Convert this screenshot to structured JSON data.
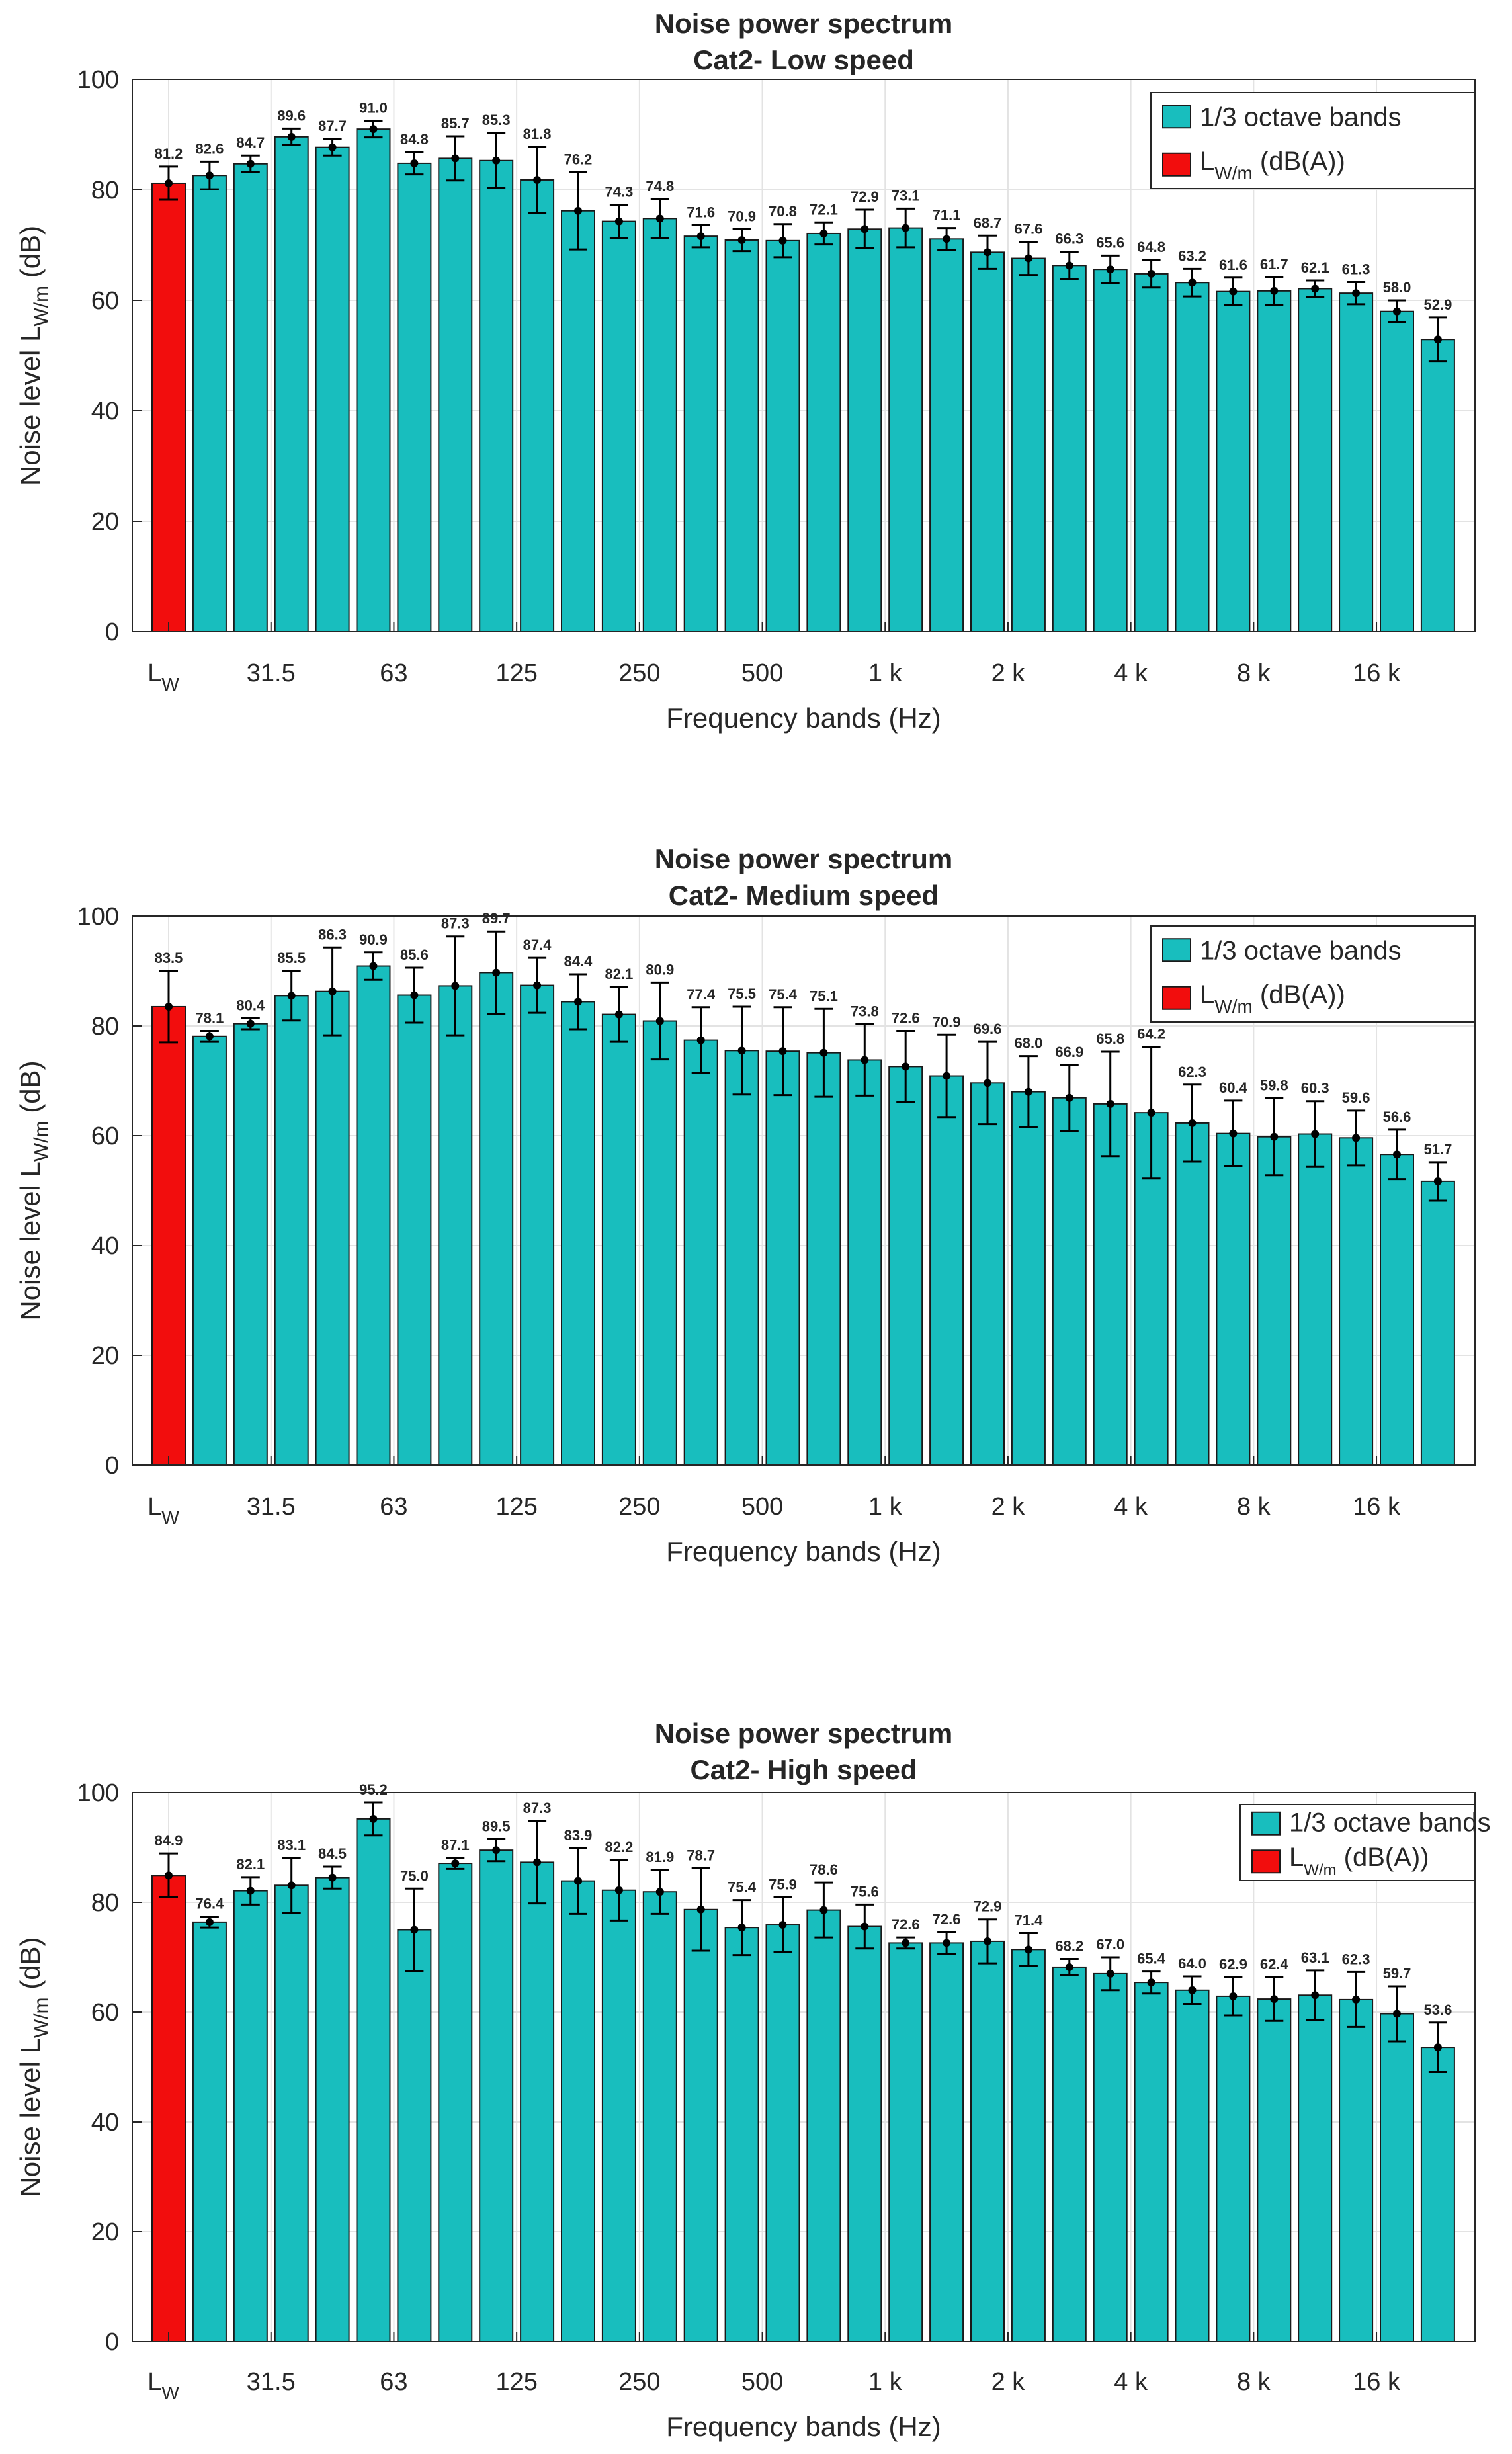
{
  "figure_title": "Noise power spectrum",
  "legend": {
    "octave_label": "1/3 octave bands",
    "lw_main": "L",
    "lw_sub": "W/m",
    "lw_suffix": "(dB(A))"
  },
  "axis_text": {
    "ylabel_main": "Noise level L",
    "ylabel_sub": "W/m",
    "ylabel_suffix": "(dB)",
    "xlabel": "Frequency bands (Hz)",
    "lw_tick_main": "L",
    "lw_tick_sub": "W"
  },
  "colors": {
    "octave_bar": "#18BEBE",
    "lw_bar": "#F20D0D",
    "grid": "#E3E3E3",
    "axis": "#262626"
  },
  "chart_data": [
    {
      "type": "bar",
      "title": "Noise power spectrum",
      "subtitle": "Cat2- Low speed",
      "xlabel": "Frequency bands (Hz)",
      "ylabel": "Noise level L W/m (dB)",
      "ylim": [
        0,
        100
      ],
      "yticks": [
        0,
        20,
        40,
        60,
        80,
        100
      ],
      "grid": true,
      "legend_position": "top-right",
      "xtick_labels": [
        "L_W",
        "31.5",
        "63",
        "125",
        "250",
        "500",
        "1 k",
        "2 k",
        "4 k",
        "8 k",
        "16 k"
      ],
      "lw": {
        "value": 81.2,
        "err": 3.0,
        "label": "81.2"
      },
      "series": [
        {
          "name": "1/3 octave bands",
          "values": [
            82.6,
            84.7,
            89.6,
            87.7,
            91.0,
            84.8,
            85.7,
            85.3,
            81.8,
            76.2,
            74.3,
            74.8,
            71.6,
            70.9,
            70.8,
            72.1,
            72.9,
            73.1,
            71.1,
            68.7,
            67.6,
            66.3,
            65.6,
            64.8,
            63.2,
            61.6,
            61.7,
            62.1,
            61.3,
            58.0,
            52.9
          ],
          "labels": [
            "82.6",
            "84.7",
            "89.6",
            "87.7",
            "91.0",
            "84.8",
            "85.7",
            "85.3",
            "81.8",
            "76.2",
            "74.3",
            "74.8",
            "71.6",
            "70.9",
            "70.8",
            "72.1",
            "72.9",
            "73.1",
            "71.1",
            "68.7",
            "67.6",
            "66.3",
            "65.6",
            "64.8",
            "63.2",
            "61.6",
            "61.7",
            "62.1",
            "61.3",
            "58.0",
            "52.9"
          ],
          "errors": [
            2.5,
            1.5,
            1.5,
            1.5,
            1.5,
            2.0,
            4.0,
            5.0,
            6.0,
            7.0,
            3.0,
            3.5,
            2.0,
            2.0,
            3.0,
            2.0,
            3.5,
            3.5,
            2.0,
            3.0,
            3.0,
            2.5,
            2.5,
            2.5,
            2.5,
            2.5,
            2.5,
            1.5,
            2.0,
            2.0,
            4.0
          ]
        }
      ]
    },
    {
      "type": "bar",
      "title": "Noise power spectrum",
      "subtitle": "Cat2- Medium speed",
      "xlabel": "Frequency bands (Hz)",
      "ylabel": "Noise level L W/m (dB)",
      "ylim": [
        0,
        100
      ],
      "yticks": [
        0,
        20,
        40,
        60,
        80,
        100
      ],
      "grid": true,
      "legend_position": "top-right",
      "xtick_labels": [
        "L_W",
        "31.5",
        "63",
        "125",
        "250",
        "500",
        "1 k",
        "2 k",
        "4 k",
        "8 k",
        "16 k"
      ],
      "lw": {
        "value": 83.5,
        "err": 6.5,
        "label": "83.5"
      },
      "series": [
        {
          "name": "1/3 octave bands",
          "values": [
            78.1,
            80.4,
            85.5,
            86.3,
            90.9,
            85.6,
            87.3,
            89.7,
            87.4,
            84.4,
            82.1,
            80.9,
            77.4,
            75.5,
            75.4,
            75.1,
            73.8,
            72.6,
            70.9,
            69.6,
            68.0,
            66.9,
            65.8,
            64.2,
            62.3,
            60.4,
            59.8,
            60.3,
            59.6,
            56.6,
            51.7
          ],
          "labels": [
            "78.1",
            "80.4",
            "85.5",
            "86.3",
            "90.9",
            "85.6",
            "87.3",
            "89.7",
            "87.4",
            "84.4",
            "82.1",
            "80.9",
            "77.4",
            "75.5",
            "75.4",
            "75.1",
            "73.8",
            "72.6",
            "70.9",
            "69.6",
            "68.0",
            "66.9",
            "65.8",
            "64.2",
            "62.3",
            "60.4",
            "59.8",
            "60.3",
            "59.6",
            "56.6",
            "51.7"
          ],
          "errors": [
            1.0,
            1.0,
            4.5,
            8.0,
            2.5,
            5.0,
            9.0,
            7.5,
            5.0,
            5.0,
            5.0,
            7.0,
            6.0,
            8.0,
            8.0,
            8.0,
            6.5,
            6.5,
            7.5,
            7.5,
            6.5,
            6.0,
            9.5,
            12.0,
            7.0,
            6.0,
            7.0,
            6.0,
            5.0,
            4.5,
            3.5
          ]
        }
      ]
    },
    {
      "type": "bar",
      "title": "Noise power spectrum",
      "subtitle": "Cat2- High speed",
      "xlabel": "Frequency bands (Hz)",
      "ylabel": "Noise level L W/m (dB)",
      "ylim": [
        0,
        100
      ],
      "yticks": [
        0,
        20,
        40,
        60,
        80,
        100
      ],
      "grid": true,
      "legend_position": "top-right",
      "xtick_labels": [
        "L_W",
        "31.5",
        "63",
        "125",
        "250",
        "500",
        "1 k",
        "2 k",
        "4 k",
        "8 k",
        "16 k"
      ],
      "lw": {
        "value": 84.9,
        "err": 4.0,
        "label": "84.9"
      },
      "series": [
        {
          "name": "1/3 octave bands",
          "values": [
            76.4,
            82.1,
            83.1,
            84.5,
            95.2,
            75.0,
            87.1,
            89.5,
            87.3,
            83.9,
            82.2,
            81.9,
            78.7,
            75.4,
            75.9,
            78.6,
            75.6,
            72.6,
            72.6,
            72.9,
            71.4,
            68.2,
            67.0,
            65.4,
            64.0,
            62.9,
            62.4,
            63.1,
            62.3,
            59.7,
            53.6
          ],
          "labels": [
            "76.4",
            "82.1",
            "83.1",
            "84.5",
            "95.2",
            "75.0",
            "87.1",
            "89.5",
            "87.3",
            "83.9",
            "82.2",
            "81.9",
            "78.7",
            "75.4",
            "75.9",
            "78.6",
            "75.6",
            "72.6",
            "72.6",
            "72.9",
            "71.4",
            "68.2",
            "67.0",
            "65.4",
            "64.0",
            "62.9",
            "62.4",
            "63.1",
            "62.3",
            "59.7",
            "53.6"
          ],
          "errors": [
            1.0,
            2.5,
            5.0,
            2.0,
            3.0,
            7.5,
            1.0,
            2.0,
            7.5,
            6.0,
            5.5,
            4.0,
            7.5,
            5.0,
            5.0,
            5.0,
            4.0,
            1.0,
            2.0,
            4.0,
            3.0,
            1.5,
            3.0,
            2.0,
            2.5,
            3.5,
            4.0,
            4.5,
            5.0,
            5.0,
            4.5
          ]
        }
      ]
    }
  ]
}
